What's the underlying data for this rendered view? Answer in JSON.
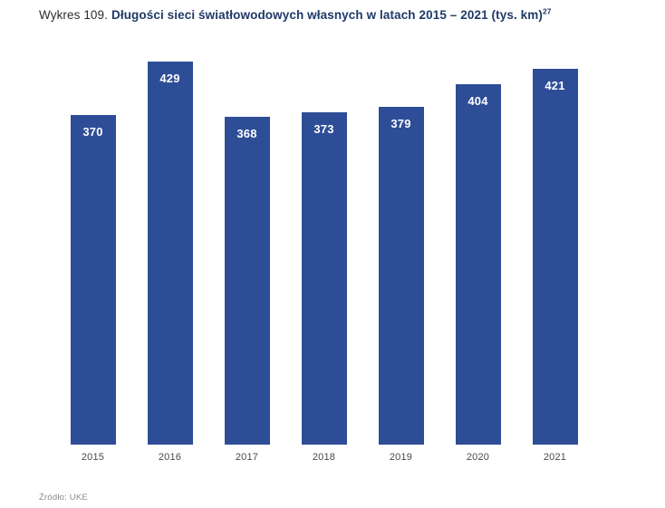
{
  "title": {
    "prefix": "Wykres 109.",
    "main": "Długości sieci światłowodowych własnych w latach 2015 – 2021 (tys. km)",
    "superscript": "27"
  },
  "source": "Źródło: UKE",
  "colors": {
    "bar": "#2e4d97",
    "title_accent": "#1f3a68",
    "value_label": "#ffffff",
    "axis_label": "#4a4a4a",
    "source_text": "#8c8c8c"
  },
  "chart_data": {
    "type": "bar",
    "title": "Wykres 109. Długości sieci światłowodowych własnych w latach 2015 – 2021 (tys. km)27",
    "categories": [
      "2015",
      "2016",
      "2017",
      "2018",
      "2019",
      "2020",
      "2021"
    ],
    "values": [
      370,
      429,
      368,
      373,
      379,
      404,
      421
    ],
    "xlabel": "",
    "ylabel": "",
    "ylim": [
      0,
      450
    ],
    "grid": false,
    "legend": false,
    "value_labels_position": "inside-top",
    "bar_color": "#2e4d97"
  }
}
